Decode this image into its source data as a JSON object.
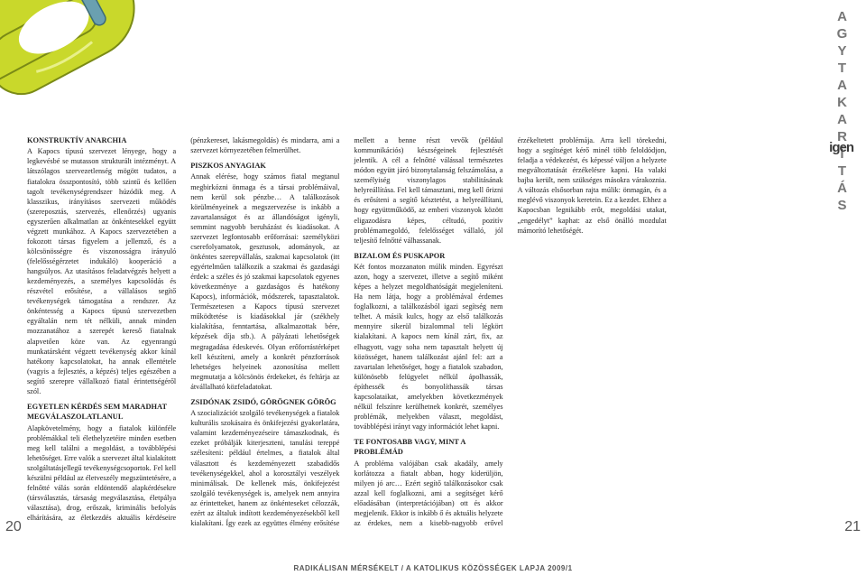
{
  "vertical_title": "AGYTAKARÍTÁS",
  "igen_logo": "igen",
  "page_left": "20",
  "page_right": "21",
  "footer": "RADIKÁLISAN MÉRSÉKELT / A KATOLIKUS KÖZÖSSÉGEK LAPJA 2009/1",
  "carabiner": {
    "body_color": "#c9d82b",
    "gate_color": "#6aa0b0",
    "outline": "#7a8a16"
  },
  "sections": [
    {
      "h": "KONSTRUKTÍV ANARCHIA",
      "p": "A Kapocs típusú szervezet lényege, hogy a legkevésbé se mutasson strukturált intézményt. A látszólagos szervezetlenség mögött tudatos, a fiatalokra összpontosító, több szintű és kellően tagolt tevékenységrendszer húzódik meg. A klasszikus, irányításos szervezeti működés (szereposztás, szervezés, ellenőrzés) ugyanis egyszerűen alkalmatlan az önkéntesekkel együtt végzett munkához. A Kapocs szervezetében a fokozott társas figyelem a jellemző, és a kölcsönösségre és viszonosságra irányuló (felelősségérzetet indukáló) kooperáció a hangsúlyos. Az utasításos feladatvégzés helyett a kezdeményezés, a személyes kapcsolódás és részvétel erősítése, a vállalásos segítő tevékenységek támogatása a rendszer. Az önkéntesség a Kapocs típusú szervezetben egyáltalán nem tét nélküli, annak minden mozzanatához a szerepét kereső fiatalnak alapvetően köze van. Az egyenrangú munkatársként végzett tevékenység akkor kínál hatékony kapcsolatokat, ha annak ellentétele (vagyis a fejlesztés, a képzés) teljes egészében a segítő szerepre vállalkozó fiatal érintettségéről szól."
    },
    {
      "h": "EGYETLEN KÉRDÉS SEM MARADHAT MEGVÁLASZOLATLANUL",
      "p": "Alapkövetelmény, hogy a fiatalok különféle problémákkal teli élethelyzetéire minden esetben meg kell találni a megoldást, a továbblépési lehetőséget. Erre valók a szervezet által kialakított szolgáltatásjellegű tevékenységcsoportok. Fel kell készülni például az életveszély megszüntetésére, a felnőtté válás során eldöntendő alapkérdésekre (társválasztás, társaság megválasztása, életpálya választása), drog, erőszak, kriminális befolyás elhárítására, az életkezdés aktuális kérdéseire (pénzkereset, lakásmegoldás) és mindarra, ami a szervezet környezetében felmerülhet."
    },
    {
      "h": "PISZKOS ANYAGIAK",
      "p": "Annak elérése, hogy számos fiatal megtanul megbirkózni önmaga és a társai problémáival, nem kerül sok pénzbe… A találkozások körülményeinek a megszervezése is inkább a zavartalanságot és az állandóságot igényli, semmint nagyobb beruházást és kiadásokat. A szervezet legfontosabb erőforrásai: személyközi cserefolyamatok, gesztusok, adományok, az önkéntes szerepvállalás, szakmai kapcsolatok (itt egyértelműen találkozik a szakmai és gazdasági érdek: a széles és jó szakmai kapcsolatok egyenes következménye a gazdaságos és hatékony Kapocs), információk, módszerek, tapasztalatok. Természetesen a Kapocs típusú szervezet működtetése is kiadásokkal jár (székhely kialakítása, fenntartása, alkalmazottak bére, képzések díja stb.). A pályázati lehetőségek megragadása édeskevés. Olyan erőforrástérképet kell készíteni, amely a konkrét pénzforrások lehetséges helyeinek azonosítása mellett megmutatja a kölcsönös érdekeket, és feltárja az átvállalható közfeladatokat."
    },
    {
      "h": "ZSIDÓNAK ZSIDÓ, GÖRÖGNEK GÖRÖG",
      "p": "A szocializációt szolgáló tevékenységek a fiatalok kulturális szokásaira és önkifejezési gyakorlatára, valamint kezdeményezéseire támaszkodnak, és ezeket próbálják kiterjeszteni, tanulási tereppé szélesíteni: például értelmes, a fiatalok által választott és kezdeményezett szabadidős tevékenységekkel, ahol a korosztályi veszélyek minimálisak. De kellenek más, önkifejezést szolgáló tevékenységek is, amelyek nem annyira az érintetteket, hanem az önkénteseket célozzák, ezért az általuk indított kezdeményezésekből kell kialakítani. Így ezek az együttes élmény erősítése mellett a benne részt vevők (például kommunikációs) készségeinek fejlesztését jelentik. A cél a felnőtté válással természetes módon együtt járó bizonytalanság felszámolása, a személyiség viszonylagos stabilitásának helyreállítása. Fel kell támasztani, meg kell őrizni és erősíteni a segítő késztetést, a helyreállítani, hogy együttműködő, az emberi viszonyok között eligazodásra képes, céltudó, pozitív problémamegoldó, felelősséget vállaló, jól teljesítő felnőtté válhassanak."
    },
    {
      "h": "BIZALOM ÉS PUSKAPOR",
      "p": "Két fontos mozzanaton múlik minden. Egyrészt azon, hogy a szervezet, illetve a segítő miként képes a helyzet megoldhatóságát megjeleníteni. Ha nem látja, hogy a problémával érdemes foglalkozni, a találkozásból igazi segítség nem telhet. A másik kulcs, hogy az első találkozás mennyire sikerül bizalommal teli légkört kialakítani. A kapocs nem kínál zárt, fix, az elhagyott, vagy soha nem tapasztalt helyett új közösséget, hanem találkozást ajánl fel: azt a zavartalan lehetőséget, hogy a fiatalok szabadon, különösebb felügyelet nélkül ápolhassák, építhessék és bonyolíthassák társas kapcsolataikat, amelyekben következmények nélkül felszínre kerülhetnek konkrét, személyes problémák, melyekben választ, megoldást, továbblépési irányt vagy információt lehet kapni."
    },
    {
      "h": "TE FONTOSABB VAGY, MINT A PROBLÉMÁD",
      "p": "A probléma valójában csak akadály, amely korlátozza a fiatalt abban, hogy kiderüljön, milyen jó arc… Ezért segítő találkozásokor csak azzal kell foglalkozni, ami a segítséget kérő előadásában (interpretációjában) ott és akkor megjelenik. Ekkor is inkább ő és aktuális helyzete az érdekes, nem a kisebb-nagyobb erővel érzékeltetett problémája. Arra kell törekedni, hogy a segítséget kérő minél több feloldódjon, feladja a védekezést, és képessé váljon a helyzete megváltoztatását érzékelésre kapni. Ha valaki bajba került, nem szükséges másokra várakoznia. A változás elsősorban rajta múlik: önmagán, és a meglévő viszonyok keretein. Ez a kezdet. Ehhez a Kapocsban legnikább erőt, megoldási utakat, „engedélyt” kaphat: az első önálló mozdulat mámorító lehetőségét."
    }
  ]
}
